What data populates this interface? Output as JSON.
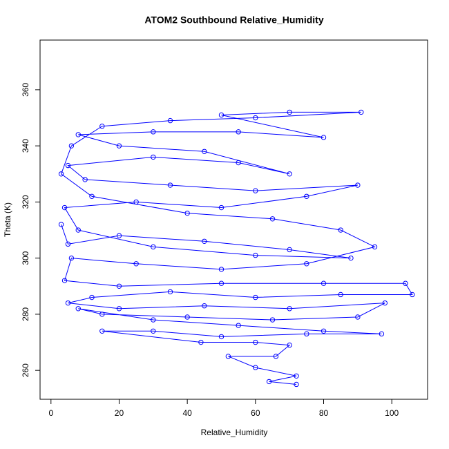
{
  "chart_data": {
    "type": "line",
    "title": "ATOM2 Southbound Relative_Humidity",
    "x_label": "Relative_Humidity",
    "y_label": "Theta (K)",
    "x": [
      3,
      5,
      20,
      45,
      70,
      88,
      60,
      30,
      8,
      4,
      25,
      50,
      75,
      90,
      60,
      35,
      10,
      5,
      30,
      55,
      70,
      45,
      20,
      8,
      30,
      55,
      80,
      50,
      70,
      91,
      60,
      35,
      15,
      6,
      3,
      12,
      40,
      65,
      85,
      95,
      75,
      50,
      25,
      6,
      4,
      20,
      50,
      80,
      104,
      106,
      85,
      60,
      35,
      12,
      5,
      20,
      45,
      70,
      98,
      90,
      65,
      40,
      15,
      8,
      30,
      55,
      80,
      97,
      75,
      50,
      30,
      15,
      44,
      60,
      70,
      66,
      52,
      60,
      72,
      64,
      72
    ],
    "series": [
      {
        "color": "#0000ff",
        "values": [
          312,
          305,
          308,
          306,
          303,
          300,
          301,
          304,
          310,
          318,
          320,
          318,
          322,
          326,
          324,
          326,
          328,
          333,
          336,
          334,
          330,
          338,
          340,
          344,
          345,
          345,
          343,
          351,
          352,
          352,
          350,
          349,
          347,
          340,
          330,
          322,
          316,
          314,
          310,
          304,
          298,
          296,
          298,
          300,
          292,
          290,
          291,
          291,
          291,
          287,
          287,
          286,
          288,
          286,
          284,
          282,
          283,
          282,
          284,
          279,
          278,
          279,
          280,
          282,
          278,
          276,
          274,
          273,
          273,
          272,
          274,
          274,
          270,
          270,
          269,
          265,
          265,
          261,
          258,
          256,
          255
        ]
      }
    ],
    "markers": "open-circle",
    "xlim": [
      -3.2,
      110.5
    ],
    "ylim": [
      249.7,
      377.7
    ],
    "xticks": [
      0,
      20,
      40,
      60,
      80,
      100
    ],
    "yticks": [
      260,
      280,
      300,
      320,
      340,
      360
    ]
  }
}
